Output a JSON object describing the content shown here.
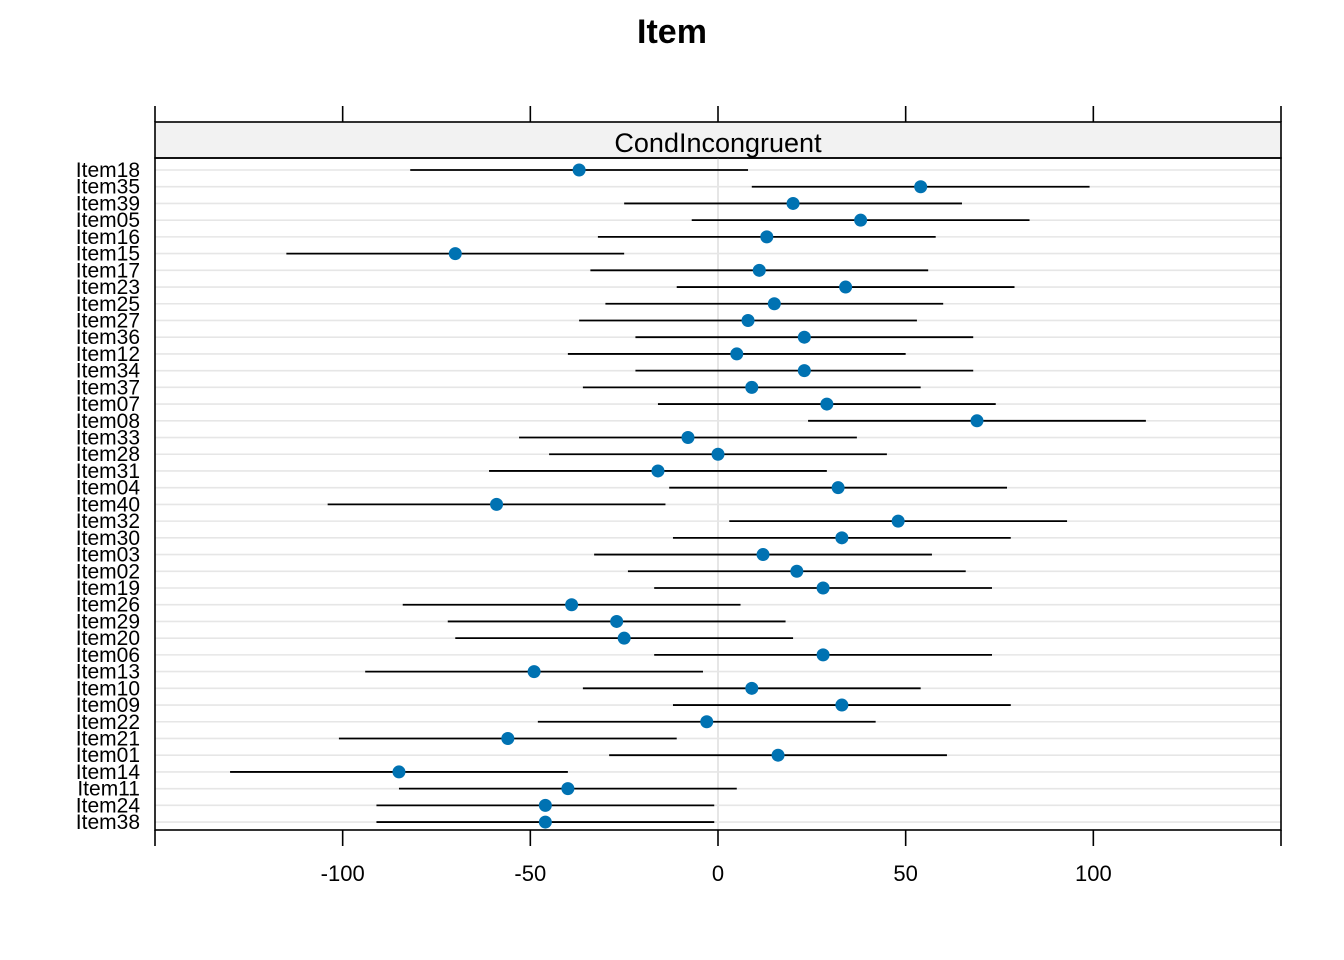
{
  "chart_data": {
    "type": "dotplot",
    "title": "Item",
    "panel": "CondIncongruent",
    "xlim": [
      -150,
      150
    ],
    "x_ticks": [
      -100,
      -50,
      0,
      50,
      100
    ],
    "x_tick_labels": [
      "-100",
      "-50",
      "0",
      "50",
      "100"
    ],
    "grid": true,
    "reference_line": 0,
    "point_color": "#0072b2",
    "line_color": "#000000",
    "categories": [
      "Item18",
      "Item35",
      "Item39",
      "Item05",
      "Item16",
      "Item15",
      "Item17",
      "Item23",
      "Item25",
      "Item27",
      "Item36",
      "Item12",
      "Item34",
      "Item37",
      "Item07",
      "Item08",
      "Item33",
      "Item28",
      "Item31",
      "Item04",
      "Item40",
      "Item32",
      "Item30",
      "Item03",
      "Item02",
      "Item19",
      "Item26",
      "Item29",
      "Item20",
      "Item06",
      "Item13",
      "Item10",
      "Item09",
      "Item22",
      "Item21",
      "Item01",
      "Item14",
      "Item11",
      "Item24",
      "Item38"
    ],
    "category_labels": [
      "Item18",
      "Item35",
      "Item39",
      "Item05",
      "Item16",
      "Item15",
      "Item17",
      "Item23",
      "Item25",
      "Item27",
      "Item36",
      "Item12",
      "Item34",
      "Item37",
      "Item07",
      "Item08",
      "Item33",
      "Item28",
      "Item31",
      "Item04",
      "Item40",
      "Item32",
      "Item30",
      "Item03",
      "Item02",
      "Item19",
      "Item26",
      "Item29",
      "Item20",
      "Item06",
      "Item13",
      "Item10",
      "Item09",
      "Item22",
      "Item21",
      "Item01",
      "Item14",
      "Item11",
      "Item24",
      "Item38"
    ],
    "values": [
      -37,
      54,
      20,
      38,
      13,
      -70,
      11,
      34,
      15,
      8,
      23,
      5,
      23,
      9,
      29,
      69,
      -8,
      0,
      -16,
      32,
      -59,
      48,
      33,
      12,
      21,
      28,
      -39,
      -27,
      -25,
      28,
      -49,
      9,
      33,
      -3,
      -56,
      16,
      -85,
      -40,
      -46,
      -46
    ],
    "lower": [
      -82,
      9,
      -25,
      -7,
      -32,
      -115,
      -34,
      -11,
      -30,
      -37,
      -22,
      -40,
      -22,
      -36,
      -16,
      24,
      -53,
      -45,
      -61,
      -13,
      -104,
      3,
      -12,
      -33,
      -24,
      -17,
      -84,
      -72,
      -70,
      -17,
      -94,
      -36,
      -12,
      -48,
      -101,
      -29,
      -130,
      -85,
      -91,
      -91
    ],
    "upper": [
      8,
      99,
      65,
      83,
      58,
      -25,
      56,
      79,
      60,
      53,
      68,
      50,
      68,
      54,
      74,
      114,
      37,
      45,
      29,
      77,
      -14,
      93,
      78,
      57,
      66,
      73,
      6,
      18,
      20,
      73,
      -4,
      54,
      78,
      42,
      -11,
      61,
      -40,
      5,
      -1,
      -1
    ]
  }
}
